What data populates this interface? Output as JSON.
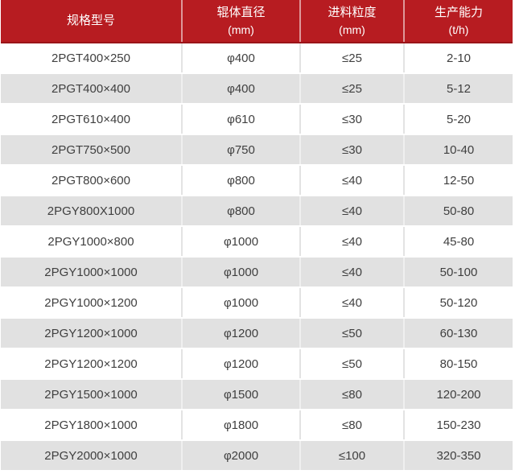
{
  "colors": {
    "header_bg": "#b71c21",
    "header_bottom_line": "#9a1419",
    "header_text": "#ffffff",
    "row_alt_bg": "#e1e1e1",
    "row_text": "#3f3f3f"
  },
  "chart_data": {
    "type": "table",
    "title": "",
    "columns": [
      {
        "line1": "规格型号",
        "line2": ""
      },
      {
        "line1": "辊体直径",
        "line2": "(mm)"
      },
      {
        "line1": "进料粒度",
        "line2": "(mm)"
      },
      {
        "line1": "生产能力",
        "line2": "(t/h)"
      }
    ],
    "rows": [
      [
        "2PGT400×250",
        "φ400",
        "≤25",
        "2-10"
      ],
      [
        "2PGT400×400",
        "φ400",
        "≤25",
        "5-12"
      ],
      [
        "2PGT610×400",
        "φ610",
        "≤30",
        "5-20"
      ],
      [
        "2PGT750×500",
        "φ750",
        "≤30",
        "10-40"
      ],
      [
        "2PGT800×600",
        "φ800",
        "≤40",
        "12-50"
      ],
      [
        "2PGY800X1000",
        "φ800",
        "≤40",
        "50-80"
      ],
      [
        "2PGY1000×800",
        "φ1000",
        "≤40",
        "45-80"
      ],
      [
        "2PGY1000×1000",
        "φ1000",
        "≤40",
        "50-100"
      ],
      [
        "2PGY1000×1200",
        "φ1000",
        "≤40",
        "50-120"
      ],
      [
        "2PGY1200×1000",
        "φ1200",
        "≤50",
        "60-130"
      ],
      [
        "2PGY1200×1200",
        "φ1200",
        "≤50",
        "80-150"
      ],
      [
        "2PGY1500×1000",
        "φ1500",
        "≤80",
        "120-200"
      ],
      [
        "2PGY1800×1000",
        "φ1800",
        "≤80",
        "150-230"
      ],
      [
        "2PGY2000×1000",
        "φ2000",
        "≤100",
        "320-350"
      ]
    ]
  }
}
